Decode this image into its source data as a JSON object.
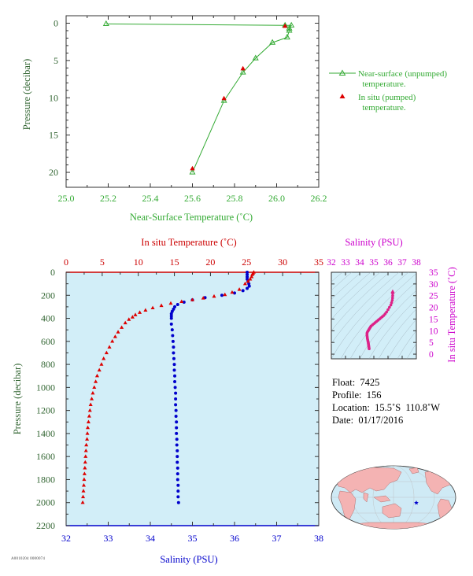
{
  "chart_data": [
    {
      "id": "near-surface",
      "type": "line",
      "xlabel": "Near-Surface Temperature (˚C)",
      "ylabel": "Pressure (decibar)",
      "xlim": [
        25.0,
        26.2
      ],
      "ylim": [
        22,
        -1
      ],
      "x_ticks": [
        "25.0",
        "25.2",
        "25.4",
        "25.6",
        "25.8",
        "26.0",
        "26.2"
      ],
      "y_ticks": [
        "0",
        "5",
        "10",
        "15",
        "20"
      ],
      "series": [
        {
          "name": "Near-surface (unpumped) temperature.",
          "color": "#33aa33",
          "marker": "triangle-open",
          "points": [
            [
              25.19,
              0.1
            ],
            [
              26.04,
              0.3
            ],
            [
              26.07,
              0.3
            ],
            [
              26.06,
              0.7
            ],
            [
              26.06,
              1.0
            ],
            [
              26.05,
              1.9
            ],
            [
              25.98,
              2.6
            ],
            [
              25.9,
              4.7
            ],
            [
              25.84,
              6.6
            ],
            [
              25.75,
              10.4
            ],
            [
              25.6,
              20.0
            ]
          ]
        },
        {
          "name": "In situ (pumped) temperature.",
          "color": "#dd0000",
          "marker": "triangle-filled",
          "points": [
            [
              26.04,
              0.4
            ],
            [
              25.84,
              6.1
            ],
            [
              25.75,
              10.1
            ],
            [
              25.6,
              19.5
            ]
          ]
        }
      ]
    },
    {
      "id": "profile",
      "type": "scatter",
      "top_axis_label": "In situ Temperature (˚C)",
      "bottom_axis_label": "Salinity (PSU)",
      "ylabel": "Pressure (decibar)",
      "temp_lim": [
        0,
        35
      ],
      "sal_lim": [
        32,
        38
      ],
      "ylim": [
        0,
        2200
      ],
      "temp_ticks": [
        "0",
        "5",
        "10",
        "15",
        "20",
        "25",
        "30",
        "35"
      ],
      "sal_ticks": [
        "32",
        "33",
        "34",
        "35",
        "36",
        "37",
        "38"
      ],
      "y_ticks": [
        "0",
        "200",
        "400",
        "600",
        "800",
        "1000",
        "1200",
        "1400",
        "1600",
        "1800",
        "2000",
        "2200"
      ],
      "temperature": {
        "color": "#dd0000",
        "points": [
          [
            26.0,
            0
          ],
          [
            25.9,
            10
          ],
          [
            25.8,
            20
          ],
          [
            25.7,
            40
          ],
          [
            25.5,
            60
          ],
          [
            25.2,
            80
          ],
          [
            24.8,
            100
          ],
          [
            24.0,
            150
          ],
          [
            23.0,
            175
          ],
          [
            22.0,
            195
          ],
          [
            20.5,
            210
          ],
          [
            19.0,
            225
          ],
          [
            17.5,
            240
          ],
          [
            16.0,
            255
          ],
          [
            14.5,
            270
          ],
          [
            13.2,
            290
          ],
          [
            12.0,
            310
          ],
          [
            11.0,
            330
          ],
          [
            10.2,
            350
          ],
          [
            9.6,
            370
          ],
          [
            9.2,
            390
          ],
          [
            8.7,
            410
          ],
          [
            8.2,
            440
          ],
          [
            7.7,
            480
          ],
          [
            7.2,
            520
          ],
          [
            6.8,
            560
          ],
          [
            6.4,
            600
          ],
          [
            6.0,
            650
          ],
          [
            5.6,
            700
          ],
          [
            5.2,
            750
          ],
          [
            4.9,
            800
          ],
          [
            4.6,
            850
          ],
          [
            4.3,
            900
          ],
          [
            4.1,
            950
          ],
          [
            3.9,
            1000
          ],
          [
            3.7,
            1050
          ],
          [
            3.55,
            1100
          ],
          [
            3.4,
            1150
          ],
          [
            3.3,
            1200
          ],
          [
            3.2,
            1250
          ],
          [
            3.1,
            1300
          ],
          [
            3.0,
            1350
          ],
          [
            2.95,
            1400
          ],
          [
            2.9,
            1450
          ],
          [
            2.8,
            1500
          ],
          [
            2.75,
            1550
          ],
          [
            2.7,
            1600
          ],
          [
            2.65,
            1650
          ],
          [
            2.6,
            1700
          ],
          [
            2.55,
            1750
          ],
          [
            2.5,
            1800
          ],
          [
            2.45,
            1850
          ],
          [
            2.4,
            1900
          ],
          [
            2.35,
            1950
          ],
          [
            2.3,
            2000
          ]
        ]
      },
      "salinity": {
        "color": "#0000cc",
        "points": [
          [
            36.3,
            0
          ],
          [
            36.3,
            20
          ],
          [
            36.3,
            40
          ],
          [
            36.3,
            60
          ],
          [
            36.32,
            80
          ],
          [
            36.34,
            100
          ],
          [
            36.35,
            120
          ],
          [
            36.3,
            140
          ],
          [
            36.2,
            160
          ],
          [
            36.0,
            180
          ],
          [
            35.7,
            200
          ],
          [
            35.3,
            220
          ],
          [
            35.0,
            240
          ],
          [
            34.8,
            260
          ],
          [
            34.65,
            280
          ],
          [
            34.58,
            300
          ],
          [
            34.55,
            320
          ],
          [
            34.52,
            340
          ],
          [
            34.5,
            360
          ],
          [
            34.5,
            380
          ],
          [
            34.5,
            400
          ],
          [
            34.5,
            450
          ],
          [
            34.52,
            500
          ],
          [
            34.53,
            550
          ],
          [
            34.54,
            600
          ],
          [
            34.55,
            650
          ],
          [
            34.55,
            700
          ],
          [
            34.56,
            750
          ],
          [
            34.57,
            800
          ],
          [
            34.57,
            850
          ],
          [
            34.58,
            900
          ],
          [
            34.58,
            950
          ],
          [
            34.59,
            1000
          ],
          [
            34.6,
            1050
          ],
          [
            34.6,
            1100
          ],
          [
            34.6,
            1150
          ],
          [
            34.61,
            1200
          ],
          [
            34.61,
            1250
          ],
          [
            34.62,
            1300
          ],
          [
            34.62,
            1350
          ],
          [
            34.62,
            1400
          ],
          [
            34.63,
            1450
          ],
          [
            34.63,
            1500
          ],
          [
            34.64,
            1550
          ],
          [
            34.64,
            1600
          ],
          [
            34.64,
            1650
          ],
          [
            34.65,
            1700
          ],
          [
            34.65,
            1750
          ],
          [
            34.65,
            1800
          ],
          [
            34.66,
            1850
          ],
          [
            34.66,
            1900
          ],
          [
            34.66,
            1950
          ],
          [
            34.67,
            2000
          ]
        ]
      }
    },
    {
      "id": "ts-diagram",
      "type": "scatter",
      "top_axis_label": "Salinity (PSU)",
      "right_axis_label": "In situ Temperature (˚C)",
      "sal_lim": [
        32,
        38
      ],
      "temp_lim": [
        -2,
        35
      ],
      "sal_ticks": [
        "32",
        "33",
        "34",
        "35",
        "36",
        "37",
        "38"
      ],
      "temp_ticks": [
        "0",
        "5",
        "10",
        "15",
        "20",
        "25",
        "30",
        "35"
      ],
      "color": "#dd2288",
      "points": [
        [
          34.67,
          2.3
        ],
        [
          34.66,
          2.7
        ],
        [
          34.65,
          3.1
        ],
        [
          34.64,
          3.5
        ],
        [
          34.63,
          3.9
        ],
        [
          34.62,
          4.3
        ],
        [
          34.61,
          4.7
        ],
        [
          34.6,
          5.2
        ],
        [
          34.58,
          5.6
        ],
        [
          34.57,
          6.0
        ],
        [
          34.55,
          6.5
        ],
        [
          34.54,
          7.0
        ],
        [
          34.53,
          7.5
        ],
        [
          34.52,
          8.0
        ],
        [
          34.52,
          8.5
        ],
        [
          34.52,
          9.0
        ],
        [
          34.55,
          9.5
        ],
        [
          34.6,
          10.0
        ],
        [
          34.65,
          10.5
        ],
        [
          34.7,
          11.0
        ],
        [
          34.75,
          11.5
        ],
        [
          34.8,
          12.0
        ],
        [
          34.9,
          12.5
        ],
        [
          35.0,
          13.0
        ],
        [
          35.1,
          13.5
        ],
        [
          35.2,
          14.0
        ],
        [
          35.3,
          14.5
        ],
        [
          35.4,
          15.0
        ],
        [
          35.5,
          15.5
        ],
        [
          35.6,
          16.0
        ],
        [
          35.7,
          16.5
        ],
        [
          35.8,
          17.2
        ],
        [
          35.9,
          18.0
        ],
        [
          36.0,
          19.0
        ],
        [
          36.1,
          20.0
        ],
        [
          36.2,
          21.0
        ],
        [
          36.25,
          22.0
        ],
        [
          36.3,
          23.0
        ],
        [
          36.32,
          24.0
        ],
        [
          36.33,
          25.0
        ],
        [
          36.33,
          26.0
        ]
      ]
    }
  ],
  "float_info": {
    "float": "Float:  7425",
    "profile": "Profile:  156",
    "location": "Location:  15.5˚S  110.8˚W",
    "date": "Date:  01/17/2016"
  },
  "footer_code": "A0010204 0000074",
  "map": {
    "marker_color": "#0000cc"
  }
}
